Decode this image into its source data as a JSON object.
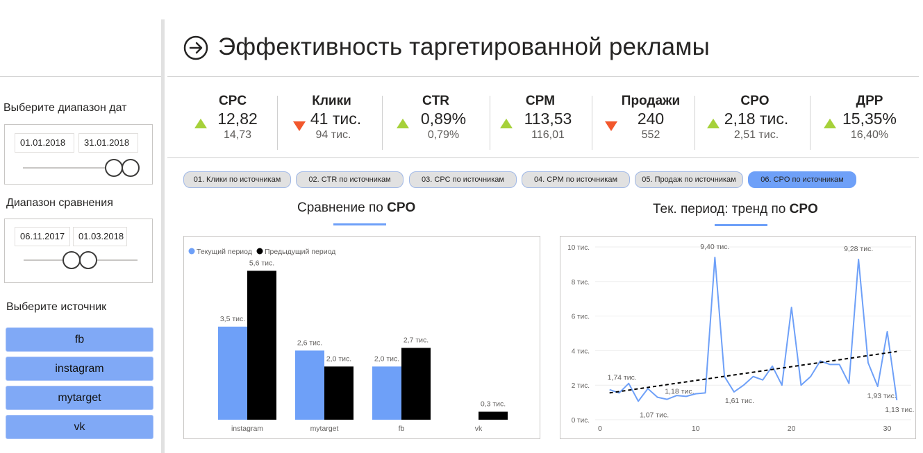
{
  "title": "Эффективность таргетированной рекламы",
  "sidebar": {
    "date_range_label": "Выберите диапазон дат",
    "date_start": "01.01.2018",
    "date_end": "31.01.2018",
    "compare_label": "Диапазон сравнения",
    "compare_start": "06.11.2017",
    "compare_end": "01.03.2018",
    "source_label": "Выберите источник",
    "sources": [
      "fb",
      "instagram",
      "mytarget",
      "vk"
    ]
  },
  "kpis": [
    {
      "title": "CPC",
      "value": "12,82",
      "previous": "14,73",
      "trend": "up"
    },
    {
      "title": "Клики",
      "value": "41 тис.",
      "previous": "94 тис.",
      "trend": "down"
    },
    {
      "title": "CTR",
      "value": "0,89%",
      "previous": "0,79%",
      "trend": "up"
    },
    {
      "title": "CPM",
      "value": "113,53",
      "previous": "116,01",
      "trend": "up"
    },
    {
      "title": "Продажи",
      "value": "240",
      "previous": "552",
      "trend": "down"
    },
    {
      "title": "CPO",
      "value": "2,18 тис.",
      "previous": "2,51 тис.",
      "trend": "up"
    },
    {
      "title": "ДРР",
      "value": "15,35%",
      "previous": "16,40%",
      "trend": "up"
    }
  ],
  "tabs": [
    {
      "label": "01. Клики по источникам",
      "active": false
    },
    {
      "label": "02. CTR по источникам",
      "active": false
    },
    {
      "label": "03. CPC по источникам",
      "active": false
    },
    {
      "label": "04. CPM по источникам",
      "active": false
    },
    {
      "label": "05. Продаж по источникам",
      "active": false
    },
    {
      "label": "06. CPO по источникам",
      "active": true
    }
  ],
  "bar_section": {
    "title_prefix": "Сравнение по ",
    "title_bold": "CPO"
  },
  "line_section": {
    "title_prefix": "Тек. период: тренд по ",
    "title_bold": "CPO"
  },
  "colors": {
    "current": "#6ea0f8",
    "previous": "#000000",
    "up": "#a6d13a",
    "down": "#f2572c",
    "accent": "#6ea0f8"
  },
  "chart_data": [
    {
      "type": "bar",
      "legend": [
        "Текущий период",
        "Предыдущий период"
      ],
      "legend_position": "top-left",
      "categories": [
        "instagram",
        "mytarget",
        "fb",
        "vk"
      ],
      "series": [
        {
          "name": "Текущий период",
          "values": [
            3.5,
            2.6,
            2.0,
            null
          ],
          "labels": [
            "3,5 тис.",
            "2,6 тис.",
            "2,0 тис.",
            ""
          ]
        },
        {
          "name": "Предыдущий период",
          "values": [
            5.6,
            2.0,
            2.7,
            0.3
          ],
          "labels": [
            "5,6 тис.",
            "2,0 тис.",
            "2,7 тис.",
            "0,3 тис."
          ]
        }
      ],
      "ylim": [
        0,
        6
      ]
    },
    {
      "type": "line",
      "x": [
        1,
        2,
        3,
        4,
        5,
        6,
        7,
        8,
        9,
        10,
        11,
        12,
        13,
        14,
        15,
        16,
        17,
        18,
        19,
        20,
        21,
        22,
        23,
        24,
        25,
        26,
        27,
        28,
        29,
        30,
        31
      ],
      "y": [
        1.74,
        1.55,
        2.1,
        1.07,
        1.8,
        1.3,
        1.18,
        1.4,
        1.35,
        1.5,
        1.55,
        9.4,
        2.5,
        1.61,
        2.0,
        2.5,
        2.3,
        3.1,
        2.0,
        6.5,
        2.0,
        2.5,
        3.4,
        3.2,
        3.2,
        2.1,
        9.28,
        3.3,
        1.93,
        5.1,
        1.13
      ],
      "labels": [
        {
          "x": 1,
          "text": "1,74 тис."
        },
        {
          "x": 4,
          "text": "1,07 тис."
        },
        {
          "x": 7,
          "text": "1,18 тис."
        },
        {
          "x": 12,
          "text": "9,40 тис."
        },
        {
          "x": 14,
          "text": "1,61 тис."
        },
        {
          "x": 27,
          "text": "9,28 тис."
        },
        {
          "x": 29,
          "text": "1,93 тис."
        },
        {
          "x": 31,
          "text": "1,13 тис."
        }
      ],
      "trend": {
        "x": [
          1,
          31
        ],
        "y": [
          1.55,
          3.95
        ]
      },
      "yticks": [
        "0 тис.",
        "2 тис.",
        "4 тис.",
        "6 тис.",
        "8 тис.",
        "10 тис."
      ],
      "ytick_values": [
        0,
        2,
        4,
        6,
        8,
        10
      ],
      "xticks": [
        0,
        10,
        20,
        30
      ],
      "xlim": [
        -0.5,
        32.5
      ],
      "ylim": [
        0,
        10
      ],
      "grid": true
    }
  ]
}
